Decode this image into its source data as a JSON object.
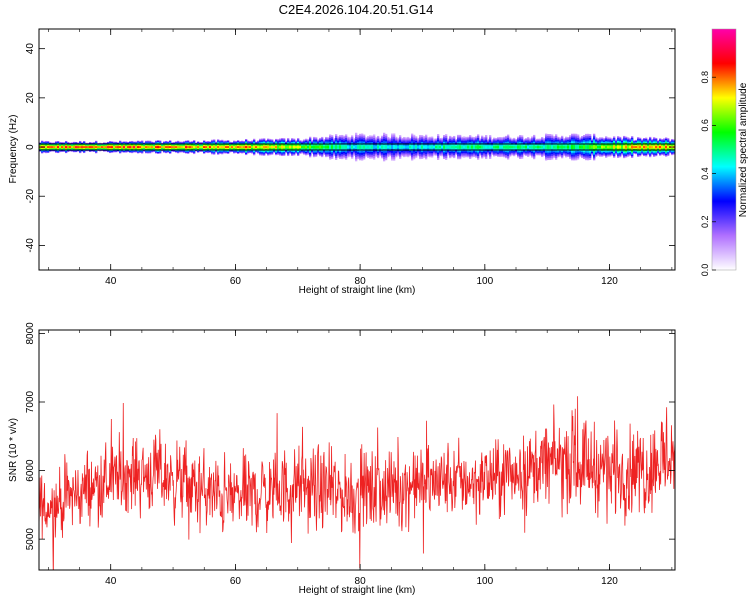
{
  "title": "C2E4.2026.104.20.51.G14",
  "chart_data": [
    {
      "type": "heatmap",
      "xlabel": "Height of straight line (km)",
      "ylabel": "Frequency (Hz)",
      "xlim": [
        28.5,
        130.5
      ],
      "ylim": [
        -50,
        48
      ],
      "x_ticks": [
        40,
        60,
        80,
        100,
        120
      ],
      "y_ticks": [
        40,
        20,
        0,
        -20,
        -40
      ],
      "grid": false,
      "band_center_hz": 0,
      "colorbar": {
        "label": "Normalized spectral amplitude",
        "range": [
          0,
          1
        ],
        "ticks": [
          "0.0",
          "0.2",
          "0.4",
          "0.6",
          "0.8"
        ],
        "colors": [
          "#ffffff",
          "#b070ff",
          "#0000ff",
          "#00ffff",
          "#00ff00",
          "#ffff00",
          "#ff0000",
          "#ff00aa"
        ]
      },
      "band_profile": [
        {
          "x": 30,
          "amp": 0.9,
          "width_hz": 2.0
        },
        {
          "x": 40,
          "amp": 0.95,
          "width_hz": 2.0
        },
        {
          "x": 50,
          "amp": 0.9,
          "width_hz": 2.2
        },
        {
          "x": 60,
          "amp": 0.88,
          "width_hz": 2.5
        },
        {
          "x": 70,
          "amp": 0.75,
          "width_hz": 3.0
        },
        {
          "x": 78,
          "amp": 0.5,
          "width_hz": 4.5
        },
        {
          "x": 85,
          "amp": 0.48,
          "width_hz": 4.5
        },
        {
          "x": 95,
          "amp": 0.55,
          "width_hz": 4.0
        },
        {
          "x": 105,
          "amp": 0.55,
          "width_hz": 4.0
        },
        {
          "x": 115,
          "amp": 0.6,
          "width_hz": 4.5
        },
        {
          "x": 122,
          "amp": 0.8,
          "width_hz": 3.5
        },
        {
          "x": 130,
          "amp": 0.85,
          "width_hz": 3.0
        }
      ]
    },
    {
      "type": "line",
      "xlabel": "Height of straight line (km)",
      "ylabel": "SNR (10 * v/v)",
      "xlim": [
        28.5,
        130.5
      ],
      "ylim": [
        4550,
        8050
      ],
      "x_ticks": [
        40,
        60,
        80,
        100,
        120
      ],
      "y_ticks": [
        5000,
        6000,
        7000,
        8000
      ],
      "grid": false,
      "series": [
        {
          "color": "#ee2222",
          "x": [
            28.5,
            33,
            38,
            42,
            46,
            50,
            54,
            58,
            62,
            66,
            70,
            74,
            78,
            82,
            86,
            90,
            94,
            98,
            102,
            106,
            110,
            114,
            118,
            122,
            126,
            128,
            130.5
          ],
          "mean": [
            5400,
            5600,
            5800,
            5950,
            5950,
            5900,
            5700,
            5600,
            5650,
            5700,
            5750,
            5700,
            5650,
            5700,
            5750,
            5800,
            5850,
            5850,
            5900,
            6000,
            6100,
            6150,
            6050,
            6000,
            6050,
            6150,
            6300
          ],
          "spread": [
            300,
            300,
            320,
            320,
            330,
            330,
            330,
            320,
            320,
            330,
            340,
            340,
            340,
            340,
            330,
            330,
            320,
            320,
            320,
            330,
            360,
            380,
            380,
            380,
            400,
            420,
            450
          ]
        }
      ]
    }
  ]
}
